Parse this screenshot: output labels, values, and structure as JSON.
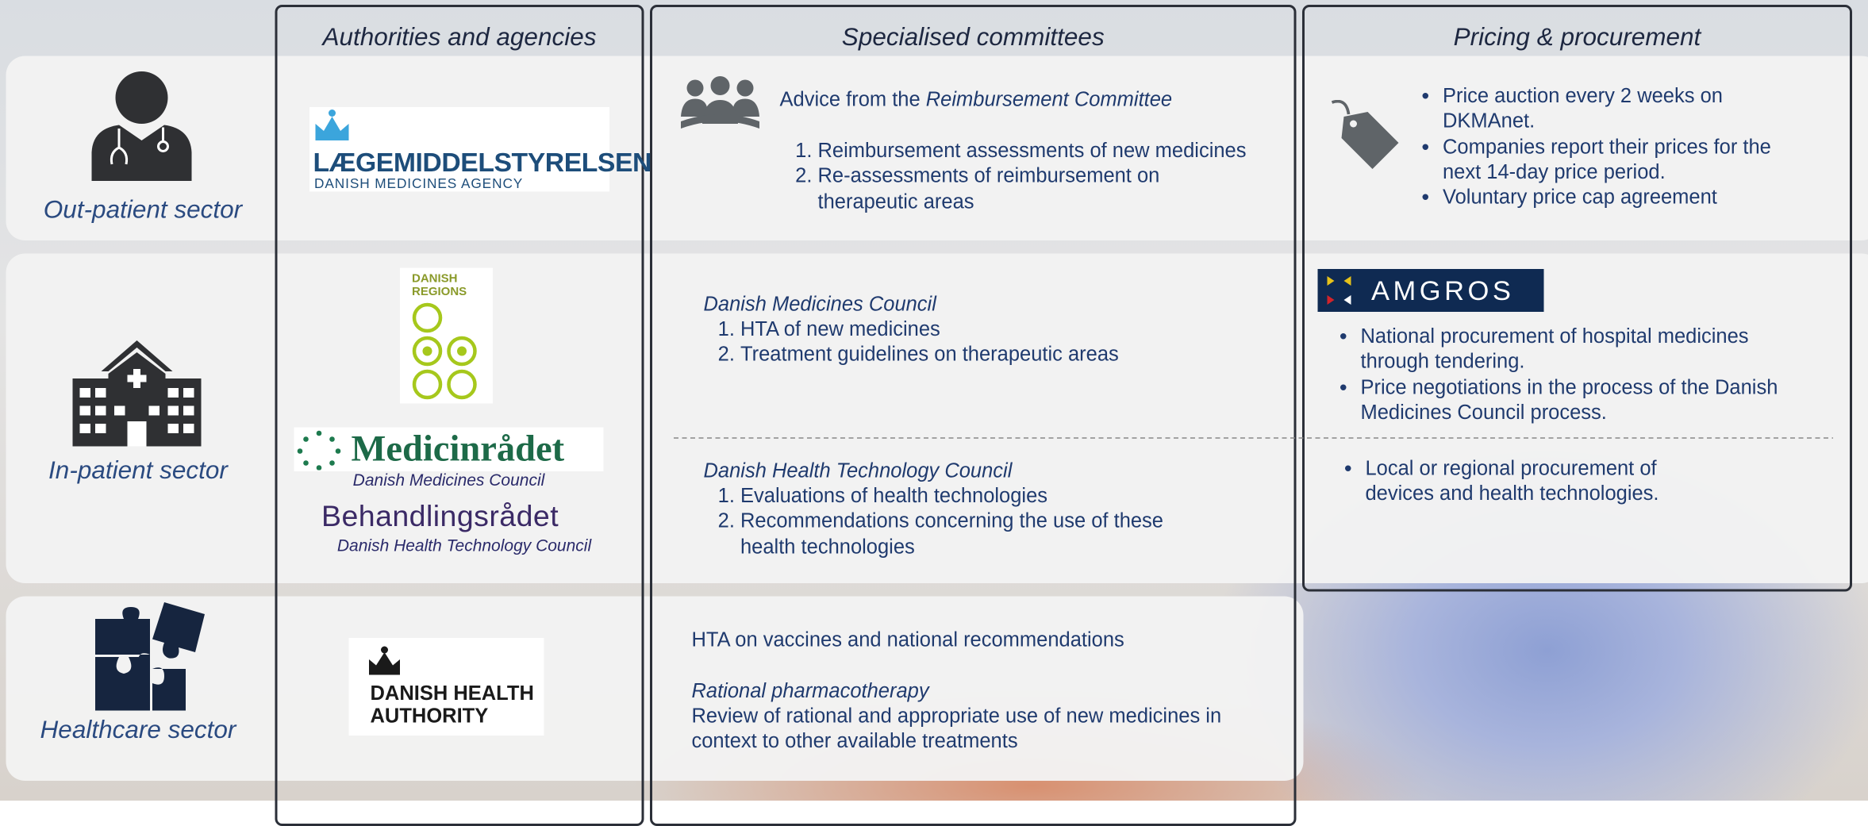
{
  "columns": [
    "Authorities and agencies",
    "Specialised committees",
    "Pricing & procurement"
  ],
  "rows": [
    "Out-patient sector",
    "In-patient sector",
    "Healthcare sector"
  ],
  "logos": {
    "dkma": {
      "name": "LÆGEMIDDELSTYRELSEN",
      "sub": "DANISH MEDICINES AGENCY"
    },
    "regions": "DANISH REGIONS",
    "medicinradet": {
      "name": "Medicinrådet",
      "caption": "Danish Medicines Council"
    },
    "behandlingsradet": {
      "name": "Behandlingsrådet",
      "caption": "Danish Health Technology Council"
    },
    "dha": "DANISH HEALTH AUTHORITY",
    "amgros": "AMGROS"
  },
  "committees": {
    "outpatient": {
      "prefix": "Advice from the",
      "committee": "Reimbursement Committee",
      "items": [
        "Reimbursement assessments of new medicines",
        "Re-assessments of reimbursement on therapeutic areas"
      ]
    },
    "medicines_council": {
      "title": "Danish Medicines Council",
      "items": [
        "HTA of new medicines",
        "Treatment guidelines on therapeutic areas"
      ]
    },
    "health_tech_council": {
      "title": "Danish Health Technology Council",
      "items": [
        "Evaluations of health technologies",
        "Recommendations concerning the use of these health technologies"
      ]
    },
    "healthcare": {
      "line": "HTA on vaccines and national recommendations",
      "title": "Rational pharmacotherapy",
      "text": "Review of rational and appropriate use of new medicines in context to other available treatments"
    }
  },
  "pricing": {
    "outpatient": [
      "Price auction every 2 weeks on DKMAnet.",
      "Companies report their prices for the next 14-day price period.",
      "Voluntary price cap agreement"
    ],
    "inpatient": [
      "National procurement of hospital medicines through tendering.",
      "Price negotiations in the process of the Danish Medicines Council process."
    ],
    "devices": [
      "Local or regional procurement of devices and health technologies."
    ]
  }
}
